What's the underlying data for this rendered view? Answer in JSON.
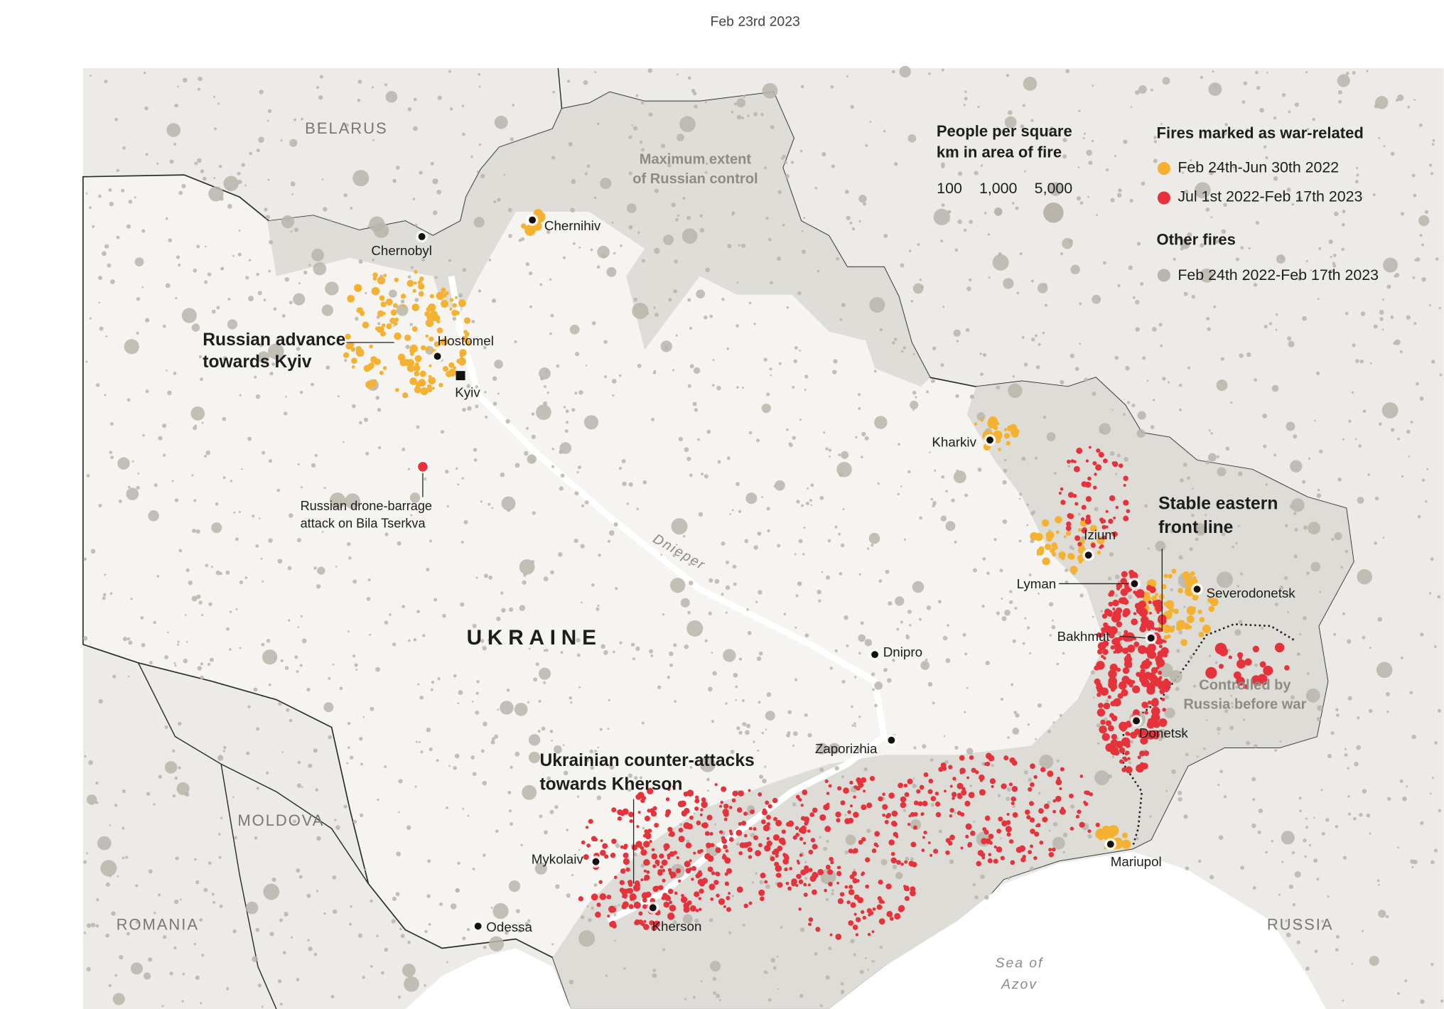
{
  "header": {
    "date": "Feb 23rd 2023"
  },
  "map": {
    "countries": [
      "BELARUS",
      "MOLDOVA",
      "ROMANIA",
      "RUSSIA",
      "UKRAINE"
    ],
    "regions": [
      {
        "lines": [
          "Maximum extent",
          "of Russian control"
        ]
      },
      {
        "lines": [
          "Controlled by",
          "Russia before war"
        ]
      }
    ],
    "water": [
      "Dnieper",
      "Sea of",
      "Azov"
    ],
    "cities": [
      "Chernobyl",
      "Chernihiv",
      "Hostomel",
      "Kyiv",
      "Kharkiv",
      "Izium",
      "Lyman",
      "Severodonetsk",
      "Bakhmut",
      "Dnipro",
      "Donetsk",
      "Zaporizhia",
      "Mariupol",
      "Mykolaiv",
      "Odessa",
      "Kherson"
    ],
    "annotations": [
      {
        "lines": [
          "Russian advance",
          "towards Kyiv"
        ]
      },
      {
        "lines": [
          "Russian drone-barrage",
          "attack on Bila Tserkva"
        ]
      },
      {
        "lines": [
          "Stable eastern",
          "front line"
        ]
      },
      {
        "lines": [
          "Ukrainian counter-attacks",
          "towards Kherson"
        ]
      }
    ]
  },
  "legend": {
    "size_title": [
      "People per square",
      "km in area of fire"
    ],
    "sizes": [
      "100",
      "1,000",
      "5,000"
    ],
    "war_title": "Fires marked as war-related",
    "war_items": [
      {
        "label": "Feb 24th-Jun 30th 2022",
        "color": "#f5b232"
      },
      {
        "label": "Jul 1st 2022-Feb 17th 2023",
        "color": "#e5323b"
      }
    ],
    "other_title": "Other fires",
    "other_items": [
      {
        "label": "Feb 24th 2022-Feb 17th 2023",
        "color": "#b9b5ac"
      }
    ]
  }
}
